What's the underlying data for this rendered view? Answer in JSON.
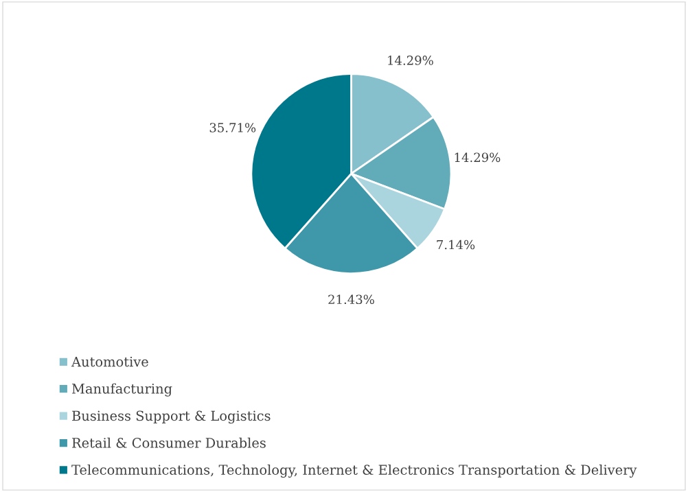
{
  "chart_data": {
    "type": "pie",
    "categories": [
      "Automotive",
      "Manufacturing",
      "Business Support & Logistics",
      "Retail & Consumer Durables",
      "Telecommunications, Technology, Internet & Electronics Transportation & Delivery"
    ],
    "values": [
      14.29,
      14.29,
      7.14,
      21.43,
      35.71
    ],
    "colors": [
      "#86c0cd",
      "#62abb8",
      "#abd5de",
      "#3f98a9",
      "#00788c"
    ],
    "value_labels": [
      "14.29%",
      "14.29%",
      "7.14%",
      "21.43%",
      "35.71%"
    ],
    "legend": "bottom"
  }
}
